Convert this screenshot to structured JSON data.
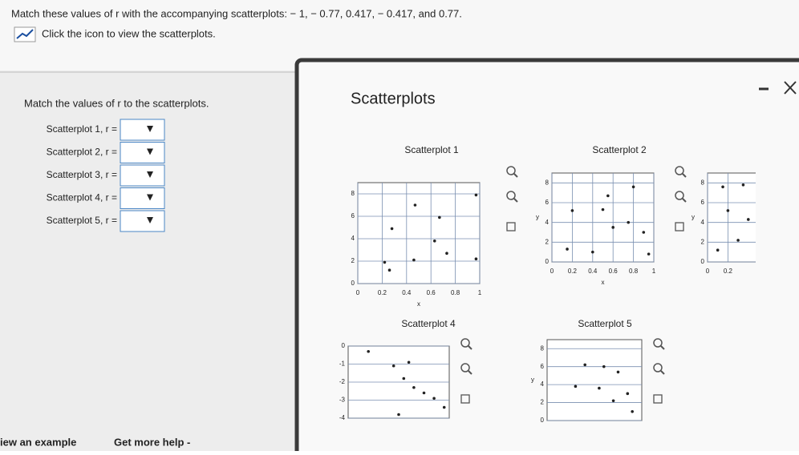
{
  "question": "Match these values of r with the accompanying scatterplots: − 1, − 0.77, 0.417, − 0.417, and 0.77.",
  "icon_hint": "Click the icon to view the scatterplots.",
  "instruction": "Match the values of r to the scatterplots.",
  "answers": [
    "Scatterplot 1, r =",
    "Scatterplot 2, r =",
    "Scatterplot 3, r =",
    "Scatterplot 4, r =",
    "Scatterplot 5, r ="
  ],
  "popup": {
    "title": "Scatterplots",
    "plots": [
      {
        "type": "scatter",
        "title": "Scatterplot 1",
        "x_label": "x",
        "xlim": [
          0,
          1
        ],
        "xticks": [
          0,
          0.2,
          0.4,
          0.6,
          0.8,
          1
        ],
        "ylim": [
          0,
          9
        ],
        "yticks": [
          0,
          2,
          4,
          6,
          8
        ],
        "x": [
          0.97,
          0.47,
          0.67,
          0.28,
          0.63,
          0.73,
          0.97,
          0.46,
          0.22,
          0.26
        ],
        "y": [
          7.9,
          7.0,
          5.9,
          4.9,
          3.8,
          2.7,
          2.2,
          2.1,
          1.9,
          1.2
        ]
      },
      {
        "type": "scatter",
        "title": "Scatterplot 2",
        "x_label": "x",
        "y_label": "y",
        "xlim": [
          0,
          1
        ],
        "xticks": [
          0,
          0.2,
          0.4,
          0.6,
          0.8,
          1
        ],
        "ylim": [
          0,
          9
        ],
        "yticks": [
          0,
          2,
          4,
          6,
          8
        ],
        "x": [
          0.8,
          0.55,
          0.5,
          0.2,
          0.75,
          0.6,
          0.9,
          0.15,
          0.4,
          0.95
        ],
        "y": [
          7.6,
          6.7,
          5.3,
          5.2,
          4.0,
          3.5,
          3.0,
          1.3,
          1.0,
          0.8
        ]
      },
      {
        "type": "scatter",
        "y_label": "y",
        "xlim": [
          0,
          1
        ],
        "xticks": [
          0,
          0.2
        ],
        "ylim": [
          0,
          9
        ],
        "yticks": [
          0,
          2,
          4,
          6,
          8
        ],
        "x": [
          0.15,
          0.35,
          0.2,
          0.3,
          0.4,
          0.1
        ],
        "y": [
          7.6,
          7.8,
          5.2,
          2.2,
          4.3,
          1.2
        ]
      },
      {
        "type": "scatter",
        "title": "Scatterplot 4",
        "xlim": [
          0,
          1
        ],
        "ylim": [
          -4,
          0
        ],
        "yticks": [
          0,
          -1,
          -2,
          -3,
          -4
        ],
        "x": [
          0.2,
          0.6,
          0.45,
          0.55,
          0.65,
          0.75,
          0.85,
          0.95,
          0.5
        ],
        "y": [
          -0.3,
          -0.9,
          -1.1,
          -1.8,
          -2.3,
          -2.6,
          -2.9,
          -3.4,
          -3.8
        ]
      },
      {
        "type": "scatter",
        "title": "Scatterplot 5",
        "y_label": "y",
        "xlim": [
          0,
          1
        ],
        "ylim": [
          0,
          9
        ],
        "yticks": [
          0,
          2,
          4,
          6,
          8
        ],
        "x": [
          0.4,
          0.6,
          0.75,
          0.3,
          0.55,
          0.85,
          0.7,
          0.9
        ],
        "y": [
          6.2,
          6.0,
          5.4,
          3.8,
          3.6,
          3.0,
          2.2,
          1.0
        ]
      }
    ]
  },
  "footer": {
    "example": "iew an example",
    "help": "Get more help -"
  }
}
